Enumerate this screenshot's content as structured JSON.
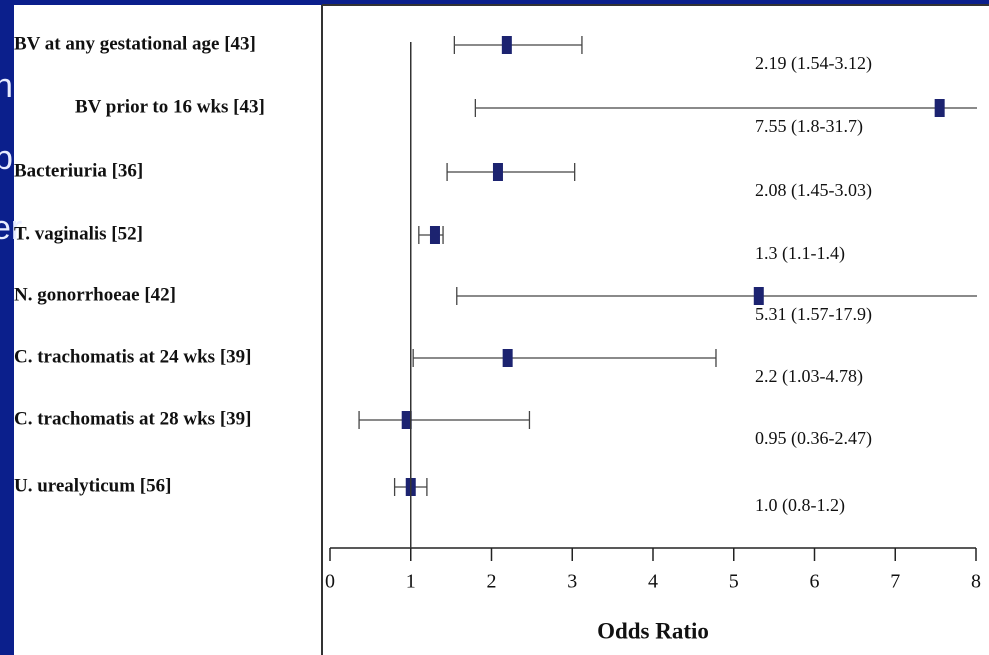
{
  "slide_fragments": [
    "h",
    "p",
    "er"
  ],
  "chart_data": {
    "type": "forest",
    "categories": [
      "BV at any gestational age [43]",
      "BV prior to 16 wks [43]",
      "Bacteriuria [36]",
      "T. vaginalis [52]",
      "N. gonorrhoeae [42]",
      "C. trachomatis at 24 wks [39]",
      "C. trachomatis at 28 wks [39]",
      "U. urealyticum [56]"
    ],
    "values": [
      2.19,
      7.55,
      2.08,
      1.3,
      5.31,
      2.2,
      0.95,
      1.0
    ],
    "ci_low": [
      1.54,
      1.8,
      1.45,
      1.1,
      1.57,
      1.03,
      0.36,
      0.8
    ],
    "ci_high": [
      3.12,
      31.7,
      3.03,
      1.4,
      17.9,
      4.78,
      2.47,
      1.2
    ],
    "value_labels": [
      "2.19  (1.54-3.12)",
      "7.55  (1.8-31.7)",
      "2.08  (1.45-3.03)",
      "1.3  (1.1-1.4)",
      "5.31  (1.57-17.9)",
      "2.2  (1.03-4.78)",
      "0.95  (0.36-2.47)",
      "1.0  (0.8-1.2)"
    ],
    "reference_line": 1,
    "xlabel": "Odds Ratio",
    "xlim": [
      0,
      8
    ],
    "xticks": [
      0,
      1,
      2,
      3,
      4,
      5,
      6,
      7,
      8
    ],
    "color": "#1c2370"
  }
}
